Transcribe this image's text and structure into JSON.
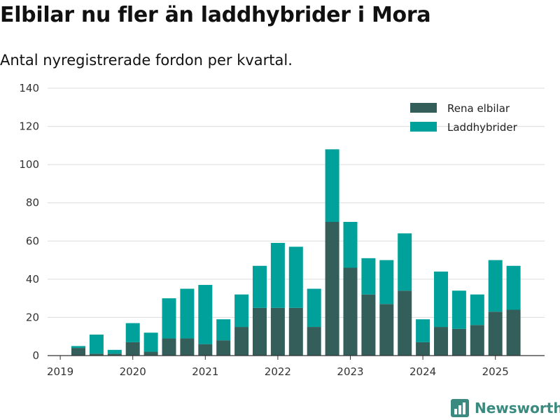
{
  "header": {
    "title": "Elbilar nu fler än laddhybrider i Mora",
    "subtitle": "Antal nyregistrerade fordon per kvartal."
  },
  "brand": {
    "name": "Newsworthy",
    "icon": "bar-chart-logo-icon",
    "color": "#3a8a7f"
  },
  "colors": {
    "ev": "#335e5a",
    "phev": "#00a19a",
    "grid": "#dcdcdc",
    "axis": "#333333"
  },
  "chart_data": {
    "type": "bar",
    "stacked": true,
    "x_ticks": [
      "2019",
      "2020",
      "2021",
      "2022",
      "2023",
      "2024",
      "2025"
    ],
    "categories": [
      "2019 Q2",
      "2019 Q3",
      "2019 Q4",
      "2020 Q1",
      "2020 Q2",
      "2020 Q3",
      "2020 Q4",
      "2021 Q1",
      "2021 Q2",
      "2021 Q3",
      "2021 Q4",
      "2022 Q1",
      "2022 Q2",
      "2022 Q3",
      "2022 Q4",
      "2023 Q1",
      "2023 Q2",
      "2023 Q3",
      "2023 Q4",
      "2024 Q1",
      "2024 Q2",
      "2024 Q3",
      "2024 Q4",
      "2025 Q1",
      "2025 Q2"
    ],
    "series": [
      {
        "name": "Rena elbilar",
        "values": [
          4,
          1,
          1,
          7,
          2,
          9,
          9,
          6,
          8,
          15,
          25,
          25,
          25,
          15,
          70,
          46,
          32,
          27,
          34,
          7,
          15,
          14,
          16,
          23,
          24
        ]
      },
      {
        "name": "Laddhybrider",
        "values": [
          1,
          10,
          2,
          10,
          10,
          21,
          26,
          31,
          11,
          17,
          22,
          34,
          32,
          20,
          38,
          24,
          19,
          23,
          30,
          12,
          29,
          20,
          16,
          27,
          23
        ]
      }
    ],
    "yticks": [
      0,
      20,
      40,
      60,
      80,
      100,
      120,
      140
    ],
    "ylim": [
      0,
      140
    ],
    "grid": true,
    "legend_position": "top-right"
  }
}
